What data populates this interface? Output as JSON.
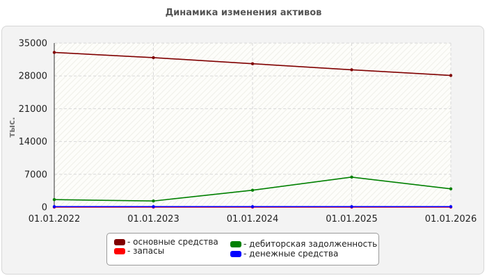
{
  "chart_data": {
    "type": "line",
    "title": "Динамика изменения активов",
    "ylabel": "тыс.",
    "xlabel": "",
    "x": [
      "01.01.2022",
      "01.01.2023",
      "01.01.2024",
      "01.01.2025",
      "01.01.2026"
    ],
    "ylim": [
      0,
      35000
    ],
    "yticks": [
      "35000",
      "28000",
      "21000",
      "14000",
      "7000",
      "0"
    ],
    "ytick_values": [
      35000,
      28000,
      21000,
      14000,
      7000,
      0
    ],
    "grid": true,
    "legend_position": "bottom",
    "series": [
      {
        "name": "основные средства",
        "color": "#800000",
        "values": [
          33000,
          31900,
          30600,
          29300,
          28100
        ]
      },
      {
        "name": "запасы",
        "color": "#ff0000",
        "values": [
          0,
          0,
          0,
          0,
          0
        ]
      },
      {
        "name": "дебиторская задолженность",
        "color": "#008000",
        "values": [
          1600,
          1300,
          3600,
          6400,
          3900
        ]
      },
      {
        "name": "денежные средства",
        "color": "#0000ff",
        "values": [
          100,
          100,
          100,
          100,
          100
        ]
      }
    ]
  }
}
